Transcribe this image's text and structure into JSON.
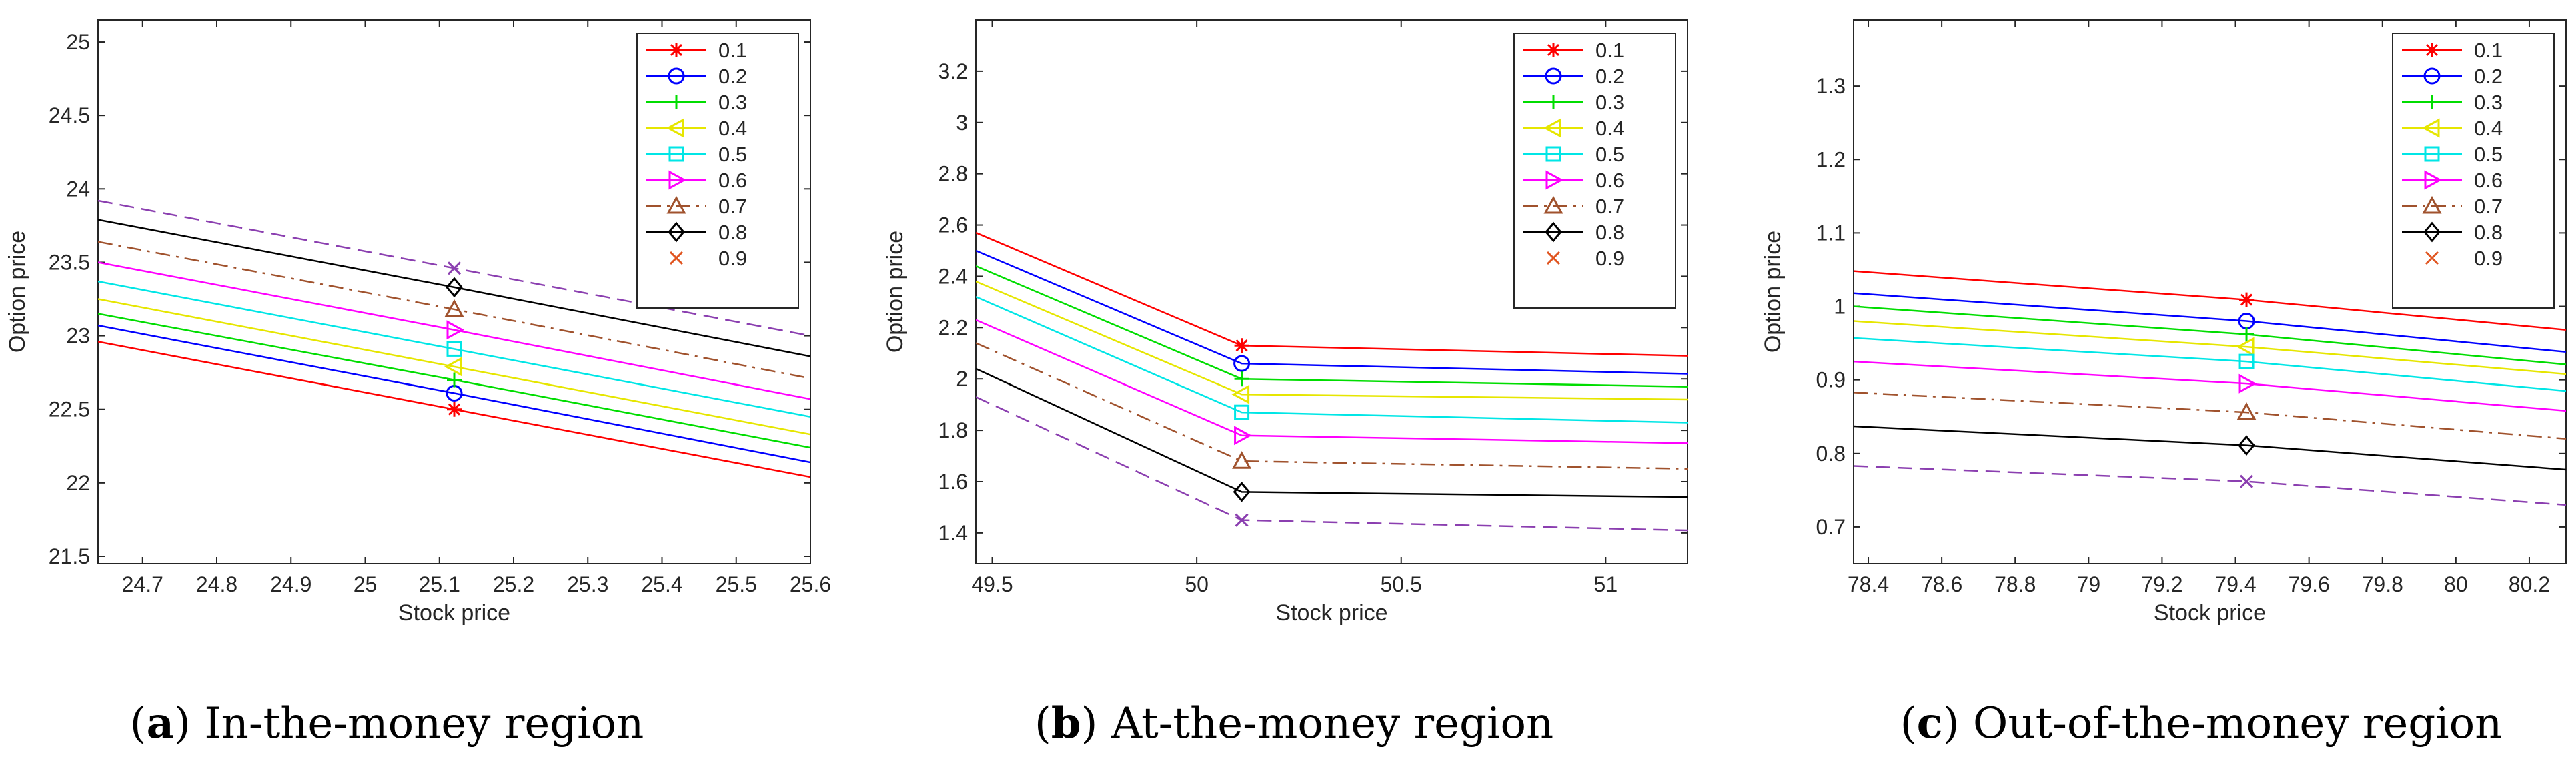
{
  "figure": {
    "captions": [
      {
        "letter": "a",
        "text": "In-the-money region"
      },
      {
        "letter": "b",
        "text": "At-the-money region"
      },
      {
        "letter": "c",
        "text": "Out-of-the-money region"
      }
    ]
  },
  "legend_entries": [
    {
      "name": "0.1",
      "color": "#ff0000",
      "marker": "star",
      "dash": "solid"
    },
    {
      "name": "0.2",
      "color": "#0000ff",
      "marker": "circle",
      "dash": "solid"
    },
    {
      "name": "0.3",
      "color": "#00dd00",
      "marker": "plus",
      "dash": "solid"
    },
    {
      "name": "0.4",
      "color": "#e6e600",
      "marker": "triangle-left",
      "dash": "solid"
    },
    {
      "name": "0.5",
      "color": "#00e6e6",
      "marker": "square",
      "dash": "solid"
    },
    {
      "name": "0.6",
      "color": "#ff00ff",
      "marker": "triangle-right",
      "dash": "solid"
    },
    {
      "name": "0.7",
      "color": "#a0522d",
      "marker": "triangle-up",
      "dash": "dashdot"
    },
    {
      "name": "0.8",
      "color": "#000000",
      "marker": "diamond",
      "dash": "solid"
    },
    {
      "name": "0.9",
      "color": "#e0541f",
      "marker": "x",
      "dash": "none"
    }
  ],
  "extra_line": {
    "color": "#8b3fb0",
    "marker": "x",
    "dash": "dashed"
  },
  "chart_data": [
    {
      "type": "line",
      "xlabel": "Stock price",
      "ylabel": "Option price",
      "xlim": [
        24.64,
        25.6
      ],
      "ylim": [
        21.45,
        25.15
      ],
      "xticks": [
        24.7,
        24.8,
        24.9,
        25,
        25.1,
        25.2,
        25.3,
        25.4,
        25.5,
        25.6
      ],
      "xtick_labels": [
        "24.7",
        "24.8",
        "24.9",
        "25",
        "25.1",
        "25.2",
        "25.3",
        "25.4",
        "25.5",
        "25.6"
      ],
      "yticks": [
        21.5,
        22,
        22.5,
        23,
        23.5,
        24,
        24.5,
        25
      ],
      "ytick_labels": [
        "21.5",
        "22",
        "22.5",
        "23",
        "23.5",
        "24",
        "24.5",
        "25"
      ],
      "x": [
        24.64,
        25.12,
        25.6
      ],
      "legend_position": "top-right",
      "series": [
        {
          "values": [
            22.96,
            22.5,
            22.04
          ]
        },
        {
          "values": [
            23.07,
            22.61,
            22.14
          ]
        },
        {
          "values": [
            23.15,
            22.7,
            22.24
          ]
        },
        {
          "values": [
            23.25,
            22.79,
            22.33
          ]
        },
        {
          "values": [
            23.37,
            22.91,
            22.45
          ]
        },
        {
          "values": [
            23.5,
            23.04,
            22.57
          ]
        },
        {
          "values": [
            23.64,
            23.18,
            22.71
          ]
        },
        {
          "values": [
            23.79,
            23.33,
            22.86
          ]
        },
        {
          "values": [
            23.92,
            23.46,
            23.0
          ]
        }
      ]
    },
    {
      "type": "line",
      "xlabel": "Stock price",
      "ylabel": "Option price",
      "xlim": [
        49.46,
        51.2
      ],
      "ylim": [
        1.28,
        3.4
      ],
      "xticks": [
        49.5,
        50,
        50.5,
        51
      ],
      "xtick_labels": [
        "49.5",
        "50",
        "50.5",
        "51"
      ],
      "yticks": [
        1.4,
        1.6,
        1.8,
        2,
        2.2,
        2.4,
        2.6,
        2.8,
        3,
        3.2
      ],
      "ytick_labels": [
        "1.4",
        "1.6",
        "1.8",
        "2",
        "2.2",
        "2.4",
        "2.6",
        "2.8",
        "3",
        "3.2"
      ],
      "x": [
        49.46,
        50.11,
        51.2
      ],
      "legend_position": "top-right",
      "series": [
        {
          "values": [
            2.57,
            2.13,
            2.09
          ]
        },
        {
          "values": [
            2.5,
            2.06,
            2.02
          ]
        },
        {
          "values": [
            2.44,
            2.0,
            1.97
          ]
        },
        {
          "values": [
            2.38,
            1.94,
            1.92
          ]
        },
        {
          "values": [
            2.32,
            1.87,
            1.83
          ]
        },
        {
          "values": [
            2.23,
            1.78,
            1.75
          ]
        },
        {
          "values": [
            2.14,
            1.68,
            1.65
          ]
        },
        {
          "values": [
            2.04,
            1.56,
            1.54
          ]
        },
        {
          "values": [
            1.93,
            1.45,
            1.41
          ]
        }
      ]
    },
    {
      "type": "line",
      "xlabel": "Stock price",
      "ylabel": "Option price",
      "xlim": [
        78.36,
        80.3
      ],
      "ylim": [
        0.65,
        1.39
      ],
      "xticks": [
        78.4,
        78.6,
        78.8,
        79,
        79.2,
        79.4,
        79.6,
        79.8,
        80,
        80.2
      ],
      "xtick_labels": [
        "78.4",
        "78.6",
        "78.8",
        "79",
        "79.2",
        "79.4",
        "79.6",
        "79.8",
        "80",
        "80.2"
      ],
      "yticks": [
        0.7,
        0.8,
        0.9,
        1,
        1.1,
        1.2,
        1.3
      ],
      "ytick_labels": [
        "0.7",
        "0.8",
        "0.9",
        "1",
        "1.1",
        "1.2",
        "1.3"
      ],
      "x": [
        78.36,
        79.43,
        80.3
      ],
      "legend_position": "top-right",
      "series": [
        {
          "values": [
            1.048,
            1.009,
            0.968
          ]
        },
        {
          "values": [
            1.018,
            0.98,
            0.938
          ]
        },
        {
          "values": [
            1.0,
            0.962,
            0.921
          ]
        },
        {
          "values": [
            0.98,
            0.945,
            0.908
          ]
        },
        {
          "values": [
            0.957,
            0.925,
            0.885
          ]
        },
        {
          "values": [
            0.925,
            0.895,
            0.858
          ]
        },
        {
          "values": [
            0.883,
            0.856,
            0.82
          ]
        },
        {
          "values": [
            0.837,
            0.811,
            0.778
          ]
        },
        {
          "values": [
            0.783,
            0.762,
            0.73
          ]
        }
      ]
    }
  ]
}
